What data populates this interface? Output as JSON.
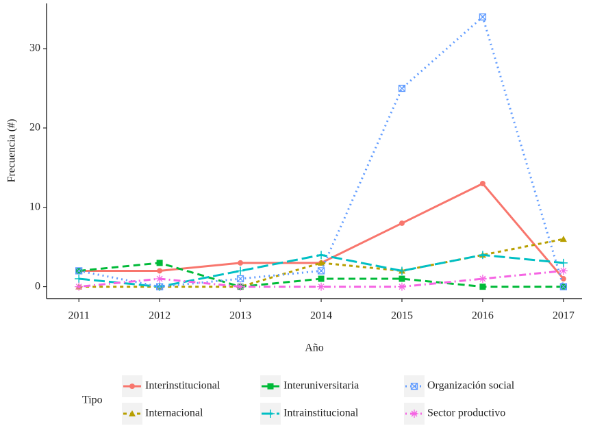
{
  "chart_data": {
    "type": "line",
    "x_label": "Año",
    "y_label": "Frecuencia (#)",
    "legend_title": "Tipo",
    "x": [
      2011,
      2012,
      2013,
      2014,
      2015,
      2016,
      2017
    ],
    "xlim": [
      2010.6,
      2017.23
    ],
    "xticks": [
      2011,
      2012,
      2013,
      2014,
      2015,
      2016,
      2017
    ],
    "ylim": [
      -1.5,
      35.7
    ],
    "yticks": [
      0,
      10,
      20,
      30
    ],
    "legend_position": "bottom",
    "series": [
      {
        "name": "Interinstitucional",
        "color": "#F8766D",
        "dash": "solid",
        "marker": "circle",
        "values": [
          2,
          2,
          3,
          3,
          8,
          13,
          1
        ]
      },
      {
        "name": "Internacional",
        "color": "#B79F00",
        "dash": "short-dash",
        "marker": "triangle",
        "values": [
          0,
          0,
          0,
          3,
          2,
          4,
          6
        ]
      },
      {
        "name": "Interuniversitaria",
        "color": "#00BA38",
        "dash": "dash",
        "marker": "square",
        "values": [
          2,
          3,
          0,
          1,
          1,
          0,
          0
        ]
      },
      {
        "name": "Intrainstitucional",
        "color": "#00BFC4",
        "dash": "long-dash",
        "marker": "plus",
        "values": [
          1,
          0,
          2,
          4,
          2,
          4,
          3
        ]
      },
      {
        "name": "Organización social",
        "color": "#619CFF",
        "dash": "dot",
        "marker": "square-cross",
        "values": [
          2,
          0,
          1,
          2,
          25,
          34,
          0
        ]
      },
      {
        "name": "Sector productivo",
        "color": "#F564E3",
        "dash": "dot-dash",
        "marker": "asterisk",
        "values": [
          0,
          1,
          0,
          0,
          0,
          1,
          2
        ]
      }
    ]
  }
}
